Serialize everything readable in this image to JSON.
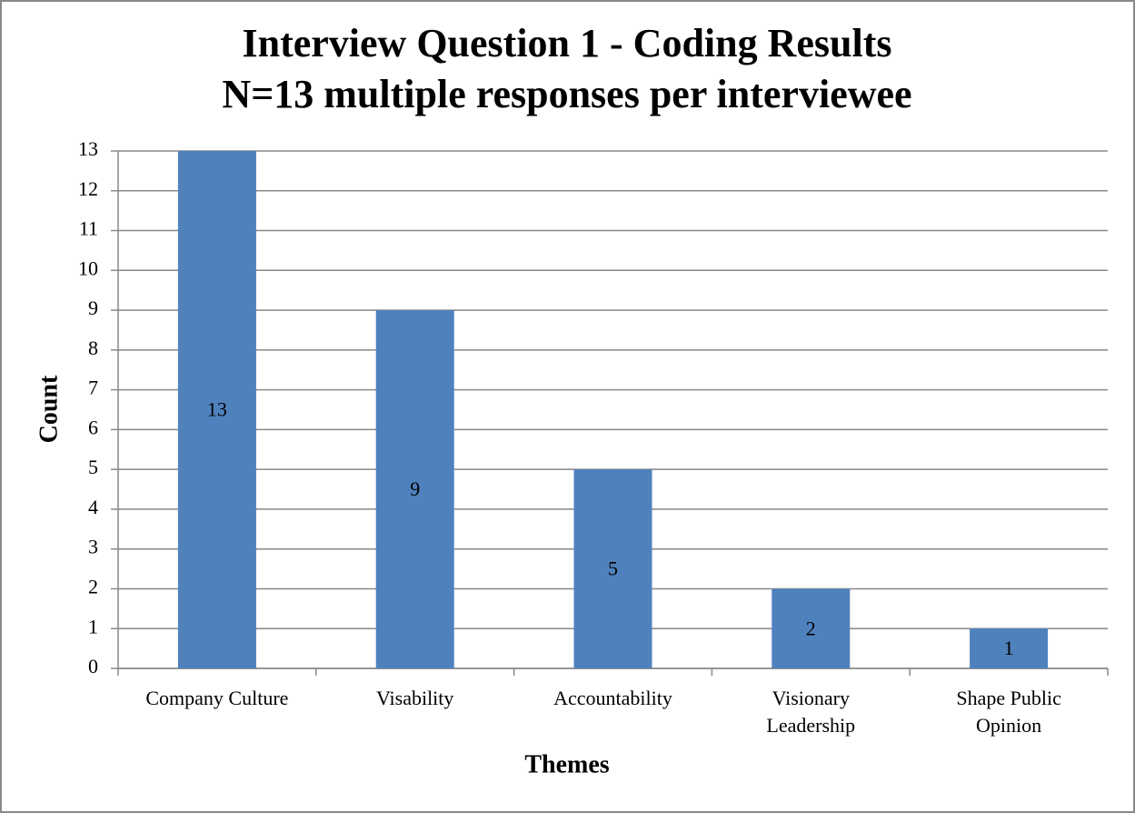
{
  "chart_data": {
    "type": "bar",
    "title": "Interview Question 1 - Coding Results",
    "subtitle": "N=13 multiple responses per interviewee",
    "x_label": "Themes",
    "y_label": "Count",
    "categories": [
      "Company Culture",
      "Visability",
      "Accountability",
      "Visionary Leadership",
      "Shape Public Opinion"
    ],
    "values": [
      13,
      9,
      5,
      2,
      1
    ],
    "color": "#4f81bd",
    "ylim": [
      0,
      13
    ],
    "yticks": [
      0,
      1,
      2,
      3,
      4,
      5,
      6,
      7,
      8,
      9,
      10,
      11,
      12,
      13
    ],
    "grid": true
  }
}
